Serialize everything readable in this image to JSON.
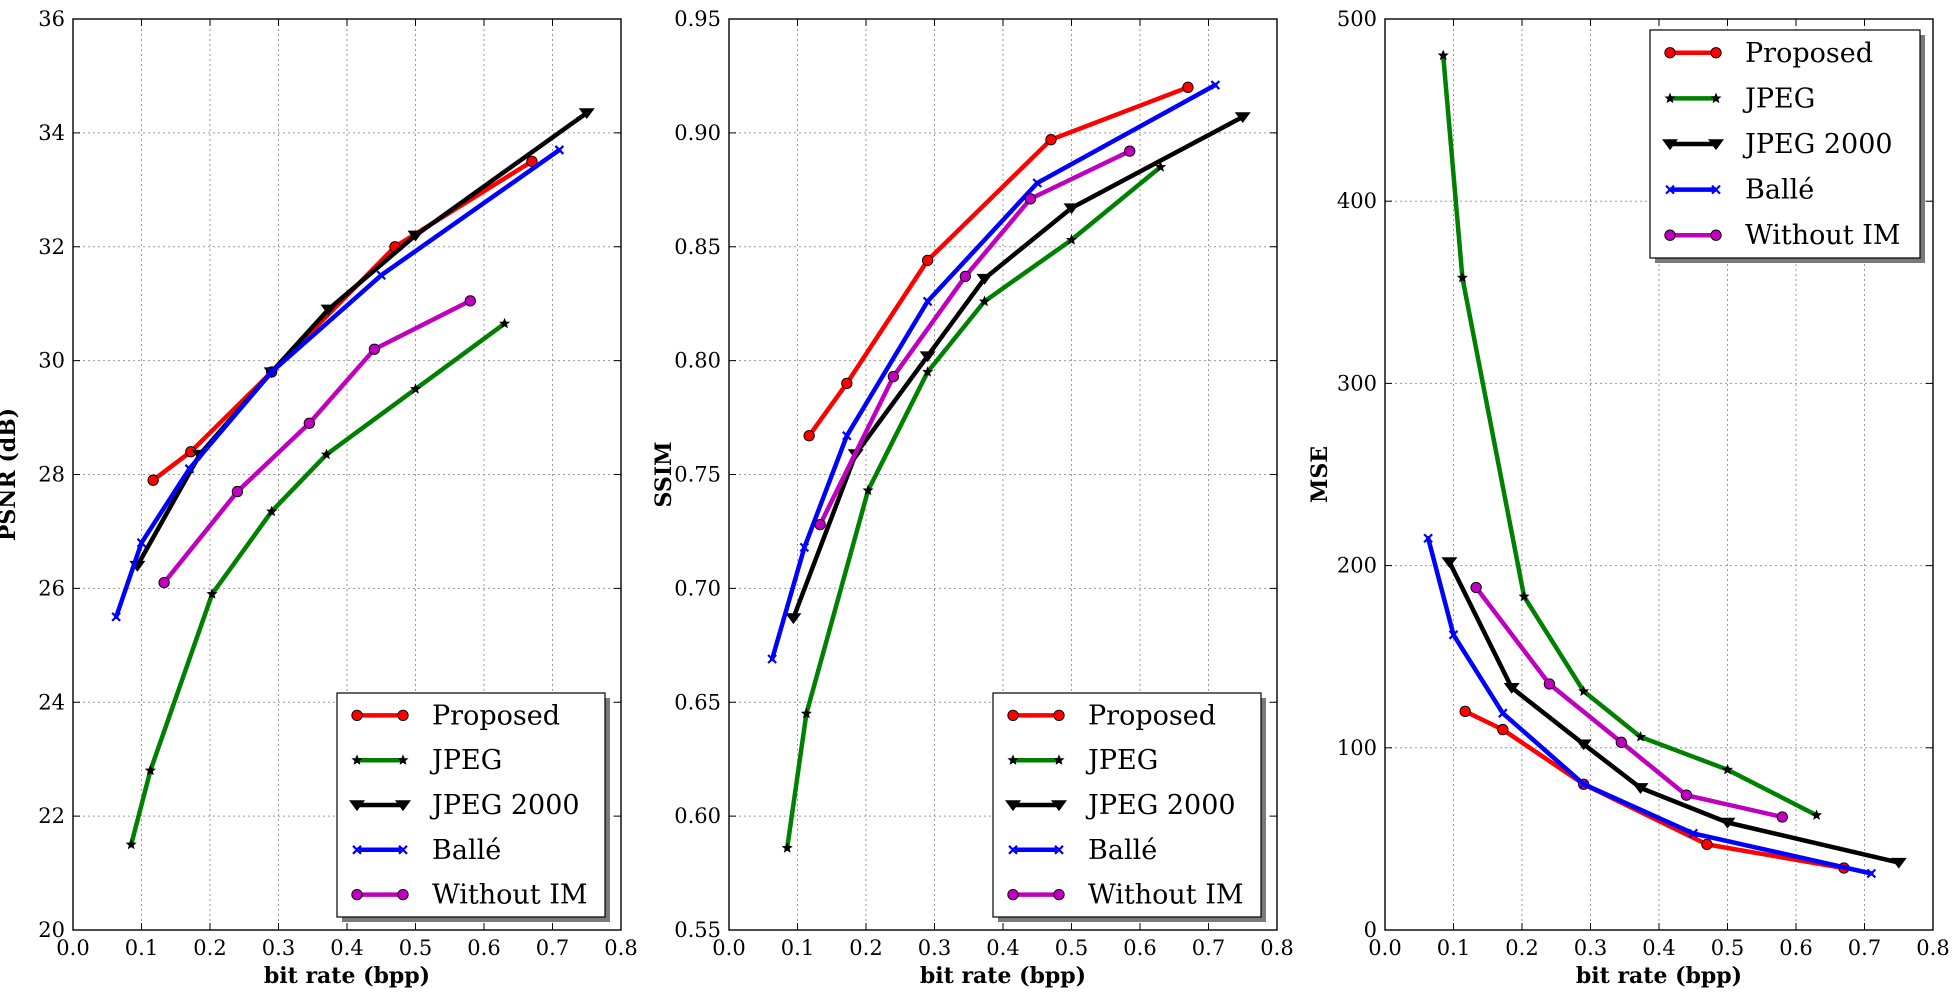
{
  "chart_data": [
    {
      "type": "line",
      "xlabel": "bit rate (bpp)",
      "ylabel": "PSNR (dB)",
      "xlim": [
        0,
        0.8
      ],
      "ylim": [
        20,
        36
      ],
      "xticks": [
        "0.0",
        "0.1",
        "0.2",
        "0.3",
        "0.4",
        "0.5",
        "0.6",
        "0.7",
        "0.8"
      ],
      "yticks": [
        "20",
        "22",
        "24",
        "26",
        "28",
        "30",
        "32",
        "34",
        "36"
      ],
      "grid": true,
      "legend_position": "lower-right",
      "series": [
        {
          "name": "Proposed",
          "color": "#ff0000",
          "marker": "circle",
          "x": [
            0.117,
            0.172,
            0.29,
            0.47,
            0.67
          ],
          "y": [
            27.9,
            28.4,
            29.8,
            32.0,
            33.5
          ]
        },
        {
          "name": "JPEG",
          "color": "#008000",
          "marker": "star",
          "x": [
            0.085,
            0.113,
            0.203,
            0.29,
            0.37,
            0.5,
            0.63
          ],
          "y": [
            21.5,
            22.8,
            25.9,
            27.35,
            28.35,
            29.5,
            30.65
          ]
        },
        {
          "name": "JPEG 2000",
          "color": "#000000",
          "marker": "triangle-down",
          "x": [
            0.094,
            0.185,
            0.29,
            0.373,
            0.5,
            0.75
          ],
          "y": [
            26.4,
            28.35,
            29.8,
            30.9,
            32.2,
            34.35
          ]
        },
        {
          "name": "Ballé",
          "color": "#0000ff",
          "marker": "x",
          "x": [
            0.063,
            0.1,
            0.17,
            0.29,
            0.45,
            0.71
          ],
          "y": [
            25.5,
            26.8,
            28.1,
            29.8,
            31.5,
            33.7
          ]
        },
        {
          "name": "Without IM",
          "color": "#bf00bf",
          "marker": "circle",
          "x": [
            0.133,
            0.24,
            0.345,
            0.44,
            0.58
          ],
          "y": [
            26.1,
            27.7,
            28.9,
            30.2,
            31.05
          ]
        }
      ]
    },
    {
      "type": "line",
      "xlabel": "bit rate (bpp)",
      "ylabel": "SSIM",
      "xlim": [
        0,
        0.8
      ],
      "ylim": [
        0.55,
        0.95
      ],
      "xticks": [
        "0.0",
        "0.1",
        "0.2",
        "0.3",
        "0.4",
        "0.5",
        "0.6",
        "0.7",
        "0.8"
      ],
      "yticks": [
        "0.55",
        "0.60",
        "0.65",
        "0.70",
        "0.75",
        "0.80",
        "0.85",
        "0.90",
        "0.95"
      ],
      "grid": true,
      "legend_position": "lower-right",
      "series": [
        {
          "name": "Proposed",
          "color": "#ff0000",
          "marker": "circle",
          "x": [
            0.117,
            0.172,
            0.29,
            0.47,
            0.67
          ],
          "y": [
            0.767,
            0.79,
            0.844,
            0.897,
            0.92
          ]
        },
        {
          "name": "JPEG",
          "color": "#008000",
          "marker": "star",
          "x": [
            0.085,
            0.113,
            0.203,
            0.29,
            0.373,
            0.5,
            0.63
          ],
          "y": [
            0.586,
            0.645,
            0.743,
            0.795,
            0.826,
            0.853,
            0.885
          ]
        },
        {
          "name": "JPEG 2000",
          "color": "#000000",
          "marker": "triangle-down",
          "x": [
            0.094,
            0.185,
            0.29,
            0.373,
            0.5,
            0.75
          ],
          "y": [
            0.687,
            0.759,
            0.802,
            0.836,
            0.867,
            0.907
          ]
        },
        {
          "name": "Ballé",
          "color": "#0000ff",
          "marker": "x",
          "x": [
            0.063,
            0.11,
            0.172,
            0.29,
            0.45,
            0.71
          ],
          "y": [
            0.669,
            0.718,
            0.767,
            0.826,
            0.878,
            0.921
          ]
        },
        {
          "name": "Without IM",
          "color": "#bf00bf",
          "marker": "circle",
          "x": [
            0.133,
            0.24,
            0.345,
            0.44,
            0.585
          ],
          "y": [
            0.728,
            0.793,
            0.837,
            0.871,
            0.892
          ]
        }
      ]
    },
    {
      "type": "line",
      "xlabel": "bit rate (bpp)",
      "ylabel": "MSE",
      "xlim": [
        0,
        0.8
      ],
      "ylim": [
        0,
        500
      ],
      "xticks": [
        "0.0",
        "0.1",
        "0.2",
        "0.3",
        "0.4",
        "0.5",
        "0.6",
        "0.7",
        "0.8"
      ],
      "yticks": [
        "0",
        "100",
        "200",
        "300",
        "400",
        "500"
      ],
      "grid": true,
      "legend_position": "top-right",
      "series": [
        {
          "name": "Proposed",
          "color": "#ff0000",
          "marker": "circle",
          "x": [
            0.117,
            0.172,
            0.29,
            0.47,
            0.67
          ],
          "y": [
            120,
            110,
            80,
            47,
            34
          ]
        },
        {
          "name": "JPEG",
          "color": "#008000",
          "marker": "star",
          "x": [
            0.085,
            0.113,
            0.203,
            0.29,
            0.373,
            0.5,
            0.63
          ],
          "y": [
            480,
            358,
            183,
            131,
            106,
            88,
            63
          ]
        },
        {
          "name": "JPEG 2000",
          "color": "#000000",
          "marker": "triangle-down",
          "x": [
            0.094,
            0.185,
            0.29,
            0.373,
            0.5,
            0.75
          ],
          "y": [
            202,
            133,
            102,
            78,
            59,
            37
          ]
        },
        {
          "name": "Ballé",
          "color": "#0000ff",
          "marker": "x",
          "x": [
            0.063,
            0.1,
            0.172,
            0.29,
            0.45,
            0.71
          ],
          "y": [
            215,
            162,
            119,
            80,
            53,
            31
          ]
        },
        {
          "name": "Without IM",
          "color": "#bf00bf",
          "marker": "circle",
          "x": [
            0.133,
            0.24,
            0.345,
            0.44,
            0.58
          ],
          "y": [
            188,
            135,
            103,
            74,
            62
          ]
        }
      ]
    }
  ]
}
